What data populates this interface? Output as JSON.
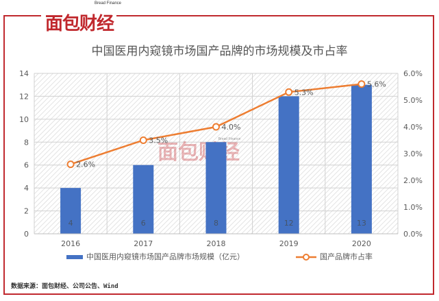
{
  "brand": {
    "logo_text": "面包财经",
    "logo_sub": "Bread Finance",
    "watermark_text": "面包财经",
    "watermark_sub": "Bread Finance",
    "accent": "#c0282d"
  },
  "source": "数据来源：面包财经、公司公告、Wind",
  "chart_data": {
    "type": "bar",
    "title": "中国医用内窥镜市场国产品牌的市场规模及市占率",
    "categories": [
      "2016",
      "2017",
      "2018",
      "2019",
      "2020"
    ],
    "series": [
      {
        "name": "中国医用内窥镜市场国产品牌市场规模（亿元）",
        "type": "bar",
        "axis": "left",
        "values": [
          4,
          6,
          8,
          12,
          13
        ],
        "labels": [
          "4",
          "6",
          "8",
          "12",
          "13"
        ],
        "color": "#4472c4"
      },
      {
        "name": "国产品牌市占率",
        "type": "line",
        "axis": "right",
        "values": [
          2.6,
          3.5,
          4.0,
          5.3,
          5.6
        ],
        "labels": [
          "2.6%",
          "3.5%",
          "4.0%",
          "5.3%",
          "5.6%"
        ],
        "color": "#ed7d31"
      }
    ],
    "y_left": {
      "range": [
        0,
        14
      ],
      "ticks": [
        "0",
        "2",
        "4",
        "6",
        "8",
        "10",
        "12",
        "14"
      ]
    },
    "y_right": {
      "range": [
        0,
        6
      ],
      "ticks": [
        "0.0%",
        "1.0%",
        "2.0%",
        "3.0%",
        "4.0%",
        "5.0%",
        "6.0%"
      ]
    },
    "legend_position": "bottom",
    "grid": true
  }
}
